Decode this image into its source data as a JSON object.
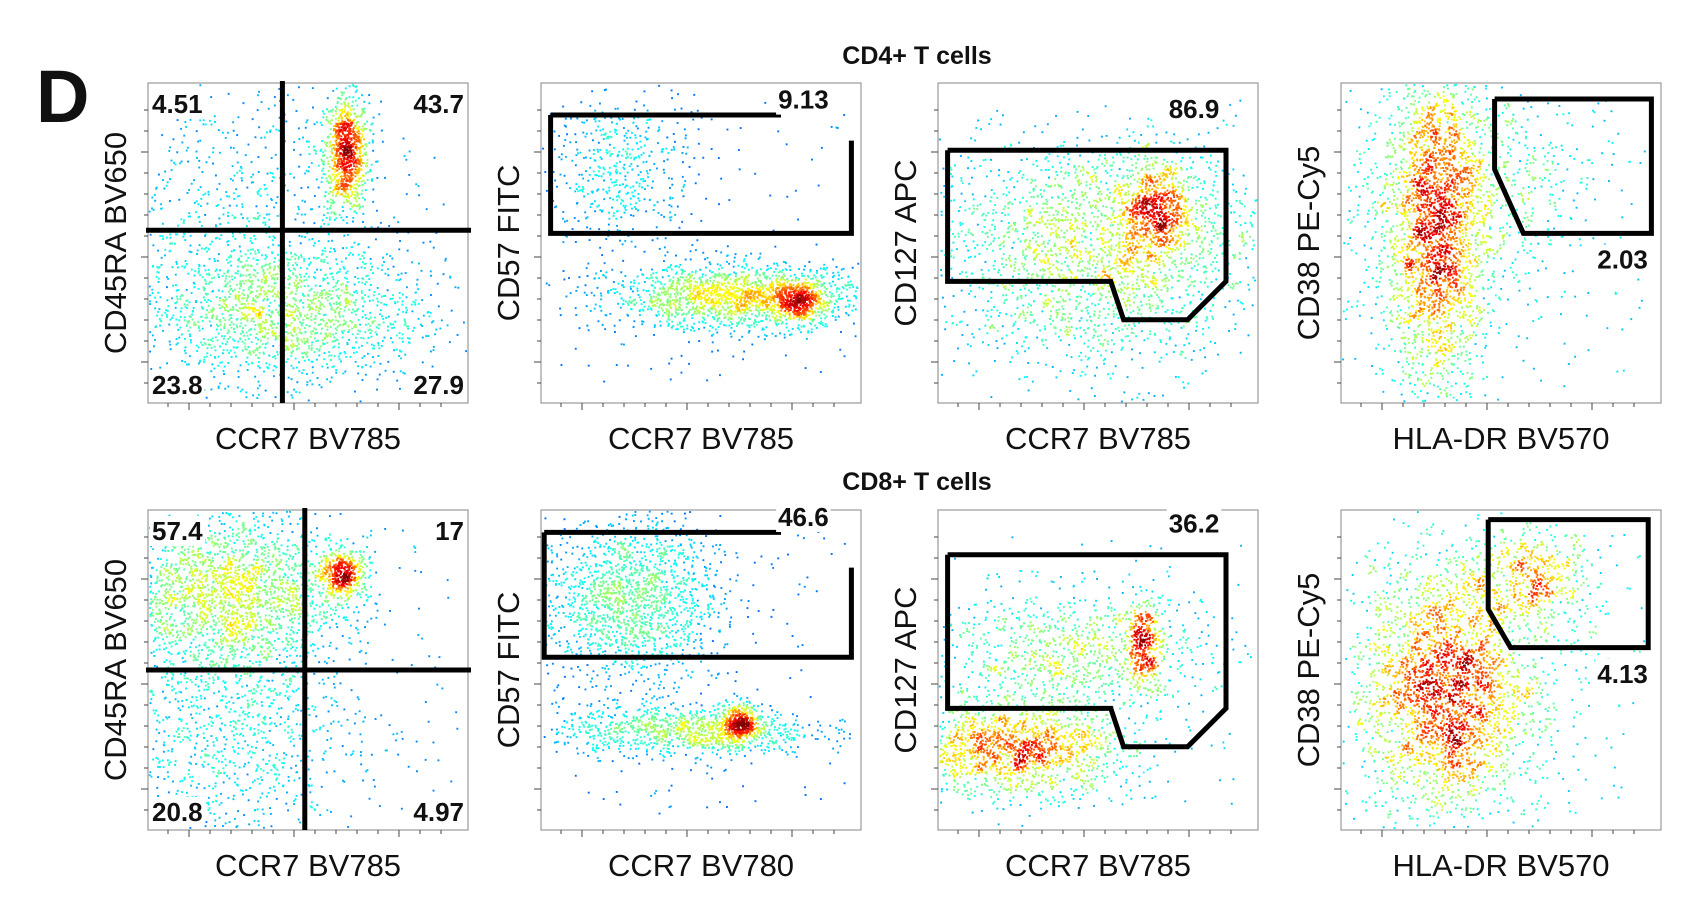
{
  "panel_letter": "D",
  "rows": [
    {
      "title": "CD4+ T cells"
    },
    {
      "title": "CD8+ T cells"
    }
  ],
  "chart_data": [
    {
      "type": "scatter",
      "subtype": "flow-cytometry-density-quadrant",
      "row": 0,
      "col": 0,
      "population": "CD4+ T cells",
      "xlabel": "CCR7  BV785",
      "ylabel": "CD45RA  BV650",
      "xlim": [
        0,
        100
      ],
      "ylim": [
        0,
        100
      ],
      "quadrant_split": [
        42,
        54
      ],
      "clusters": [
        {
          "x": 62,
          "y": 78,
          "sx": 3.5,
          "sy": 9,
          "n": 900
        },
        {
          "x": 42,
          "y": 28,
          "sx": 22,
          "sy": 11,
          "n": 1600
        },
        {
          "x": 28,
          "y": 55,
          "sx": 25,
          "sy": 25,
          "n": 800
        }
      ],
      "stats": [
        {
          "label": "4.51",
          "pos": "top-left"
        },
        {
          "label": "43.7",
          "pos": "top-right"
        },
        {
          "label": "23.8",
          "pos": "bottom-left"
        },
        {
          "label": "27.9",
          "pos": "bottom-right"
        }
      ]
    },
    {
      "type": "scatter",
      "subtype": "flow-cytometry-density-gate",
      "row": 0,
      "col": 1,
      "population": "CD4+ T cells",
      "xlabel": "CCR7  BV785",
      "ylabel": "CD57  FITC",
      "xlim": [
        0,
        100
      ],
      "ylim": [
        0,
        100
      ],
      "clusters": [
        {
          "x": 62,
          "y": 33,
          "sx": 20,
          "sy": 5,
          "n": 1700
        },
        {
          "x": 80,
          "y": 32,
          "sx": 4,
          "sy": 3,
          "n": 450
        },
        {
          "x": 25,
          "y": 73,
          "sx": 12,
          "sy": 14,
          "n": 500
        }
      ],
      "gate": [
        [
          3,
          90
        ],
        [
          3,
          53
        ],
        [
          97,
          53
        ],
        [
          97,
          82
        ]
      ],
      "gate_extra": [
        [
          3,
          90
        ],
        [
          75,
          90
        ]
      ],
      "stats": [
        {
          "label": "9.13",
          "x": 82,
          "y": 92
        }
      ]
    },
    {
      "type": "scatter",
      "subtype": "flow-cytometry-density-gate",
      "row": 0,
      "col": 2,
      "population": "CD4+ T cells",
      "xlabel": "CCR7  BV785",
      "ylabel": "CD127  APC",
      "xlim": [
        0,
        100
      ],
      "ylim": [
        0,
        100
      ],
      "clusters": [
        {
          "x": 50,
          "y": 55,
          "sx": 26,
          "sy": 14,
          "n": 1600
        },
        {
          "x": 68,
          "y": 60,
          "sx": 6,
          "sy": 8,
          "n": 650
        },
        {
          "x": 50,
          "y": 30,
          "sx": 25,
          "sy": 12,
          "n": 700
        }
      ],
      "gate": [
        [
          3,
          79
        ],
        [
          90,
          79
        ],
        [
          90,
          38
        ],
        [
          78,
          26
        ],
        [
          58,
          26
        ],
        [
          54,
          38
        ],
        [
          3,
          38
        ],
        [
          3,
          79
        ]
      ],
      "stats": [
        {
          "label": "86.9",
          "x": 80,
          "y": 89
        }
      ]
    },
    {
      "type": "scatter",
      "subtype": "flow-cytometry-density-gate",
      "row": 0,
      "col": 3,
      "population": "CD4+ T cells",
      "xlabel": "HLA-DR  BV570",
      "ylabel": "CD38  PE-Cy5",
      "xlim": [
        0,
        100
      ],
      "ylim": [
        0,
        100
      ],
      "clusters": [
        {
          "x": 30,
          "y": 55,
          "sx": 8,
          "sy": 26,
          "n": 2400
        },
        {
          "x": 30,
          "y": 60,
          "sx": 20,
          "sy": 25,
          "n": 700
        },
        {
          "x": 58,
          "y": 72,
          "sx": 12,
          "sy": 12,
          "n": 180
        }
      ],
      "gate": [
        [
          48,
          95
        ],
        [
          97,
          95
        ],
        [
          97,
          53
        ],
        [
          57,
          53
        ],
        [
          48,
          73
        ],
        [
          48,
          95
        ]
      ],
      "stats": [
        {
          "label": "2.03",
          "x": 88,
          "y": 42
        }
      ]
    },
    {
      "type": "scatter",
      "subtype": "flow-cytometry-density-quadrant",
      "row": 1,
      "col": 0,
      "population": "CD8+ T cells",
      "xlabel": "CCR7  BV785",
      "ylabel": "CD45RA  BV650",
      "xlim": [
        0,
        100
      ],
      "ylim": [
        0,
        100
      ],
      "quadrant_split": [
        49,
        50
      ],
      "clusters": [
        {
          "x": 25,
          "y": 74,
          "sx": 18,
          "sy": 13,
          "n": 2200
        },
        {
          "x": 61,
          "y": 80,
          "sx": 4,
          "sy": 4,
          "n": 450
        },
        {
          "x": 25,
          "y": 30,
          "sx": 20,
          "sy": 20,
          "n": 1000
        }
      ],
      "stats": [
        {
          "label": "57.4",
          "pos": "top-left"
        },
        {
          "label": "17",
          "pos": "top-right"
        },
        {
          "label": "20.8",
          "pos": "bottom-left"
        },
        {
          "label": "4.97",
          "pos": "bottom-right"
        }
      ]
    },
    {
      "type": "scatter",
      "subtype": "flow-cytometry-density-gate",
      "row": 1,
      "col": 1,
      "population": "CD8+ T cells",
      "xlabel": "CCR7  BV780",
      "ylabel": "CD57  FITC",
      "xlim": [
        0,
        100
      ],
      "ylim": [
        0,
        100
      ],
      "clusters": [
        {
          "x": 28,
          "y": 72,
          "sx": 14,
          "sy": 13,
          "n": 1600
        },
        {
          "x": 45,
          "y": 31,
          "sx": 20,
          "sy": 4,
          "n": 1000
        },
        {
          "x": 62,
          "y": 33,
          "sx": 3,
          "sy": 3,
          "n": 400
        }
      ],
      "gate": [
        [
          1,
          93
        ],
        [
          1,
          54
        ],
        [
          97,
          54
        ],
        [
          97,
          82
        ]
      ],
      "gate_extra": [
        [
          1,
          93
        ],
        [
          75,
          93
        ]
      ],
      "stats": [
        {
          "label": "46.6",
          "x": 82,
          "y": 95
        }
      ]
    },
    {
      "type": "scatter",
      "subtype": "flow-cytometry-density-gate",
      "row": 1,
      "col": 2,
      "population": "CD8+ T cells",
      "xlabel": "CCR7  BV785",
      "ylabel": "CD127  APC",
      "xlim": [
        0,
        100
      ],
      "ylim": [
        0,
        100
      ],
      "clusters": [
        {
          "x": 25,
          "y": 25,
          "sx": 18,
          "sy": 7,
          "n": 1500
        },
        {
          "x": 40,
          "y": 55,
          "sx": 22,
          "sy": 10,
          "n": 900
        },
        {
          "x": 64,
          "y": 58,
          "sx": 3,
          "sy": 7,
          "n": 350
        }
      ],
      "gate": [
        [
          3,
          86
        ],
        [
          90,
          86
        ],
        [
          90,
          38
        ],
        [
          78,
          26
        ],
        [
          58,
          26
        ],
        [
          54,
          38
        ],
        [
          3,
          38
        ],
        [
          3,
          86
        ]
      ],
      "stats": [
        {
          "label": "36.2",
          "x": 80,
          "y": 93
        }
      ]
    },
    {
      "type": "scatter",
      "subtype": "flow-cytometry-density-gate",
      "row": 1,
      "col": 3,
      "population": "CD8+ T cells",
      "xlabel": "HLA-DR  BV570",
      "ylabel": "CD38  PE-Cy5",
      "xlim": [
        0,
        100
      ],
      "ylim": [
        0,
        100
      ],
      "clusters": [
        {
          "x": 33,
          "y": 43,
          "sx": 12,
          "sy": 20,
          "n": 2200
        },
        {
          "x": 35,
          "y": 45,
          "sx": 22,
          "sy": 22,
          "n": 800
        },
        {
          "x": 60,
          "y": 78,
          "sx": 10,
          "sy": 8,
          "n": 500
        }
      ],
      "gate": [
        [
          46,
          97
        ],
        [
          96,
          97
        ],
        [
          96,
          57
        ],
        [
          53,
          57
        ],
        [
          46,
          69
        ],
        [
          46,
          97
        ]
      ],
      "stats": [
        {
          "label": "4.13",
          "x": 88,
          "y": 46
        }
      ]
    }
  ]
}
